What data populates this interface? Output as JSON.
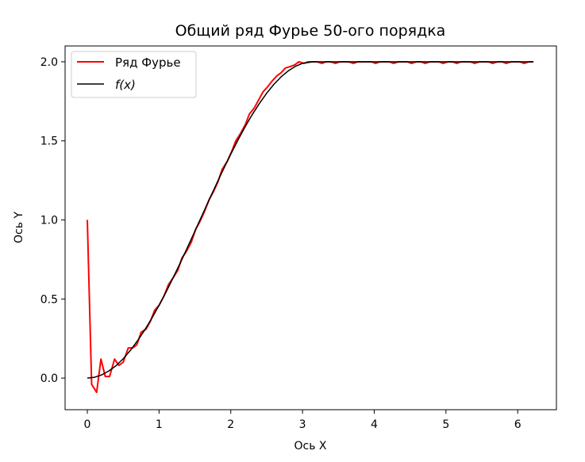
{
  "chart_data": {
    "type": "line",
    "title": "Общий ряд Фурье 50-ого порядка",
    "xlabel": "Ось X",
    "ylabel": "Ось Y",
    "xlim": [
      -0.31,
      6.54
    ],
    "ylim": [
      -0.2,
      2.1
    ],
    "xticks": [
      0,
      1,
      2,
      3,
      4,
      5,
      6
    ],
    "yticks": [
      0.0,
      0.5,
      1.0,
      1.5,
      2.0
    ],
    "xtick_labels": [
      "0",
      "1",
      "2",
      "3",
      "4",
      "5",
      "6"
    ],
    "ytick_labels": [
      "0.0",
      "0.5",
      "1.0",
      "1.5",
      "2.0"
    ],
    "grid": false,
    "legend_position": "top-left",
    "series": [
      {
        "name": "Ряд Фурье",
        "color": "#ff0000",
        "x": [
          0.0,
          0.06,
          0.13,
          0.19,
          0.25,
          0.31,
          0.38,
          0.44,
          0.5,
          0.57,
          0.63,
          0.69,
          0.75,
          0.82,
          0.88,
          0.94,
          1.0,
          1.07,
          1.13,
          1.19,
          1.26,
          1.32,
          1.38,
          1.45,
          1.51,
          1.57,
          1.63,
          1.7,
          1.76,
          1.82,
          1.88,
          1.95,
          2.01,
          2.07,
          2.14,
          2.2,
          2.26,
          2.33,
          2.39,
          2.45,
          2.51,
          2.58,
          2.64,
          2.7,
          2.76,
          2.83,
          2.89,
          2.95,
          3.02,
          3.08,
          3.14,
          3.2,
          3.27,
          3.33,
          3.39,
          3.46,
          3.52,
          3.58,
          3.64,
          3.71,
          3.77,
          3.83,
          3.9,
          3.96,
          4.02,
          4.08,
          4.15,
          4.21,
          4.27,
          4.34,
          4.4,
          4.46,
          4.52,
          4.59,
          4.65,
          4.71,
          4.78,
          4.84,
          4.9,
          4.96,
          5.03,
          5.09,
          5.15,
          5.21,
          5.28,
          5.34,
          5.4,
          5.47,
          5.53,
          5.59,
          5.65,
          5.72,
          5.78,
          5.84,
          5.91,
          5.97,
          6.03,
          6.09,
          6.16,
          6.22
        ],
        "y": [
          1.0,
          -0.04,
          -0.09,
          0.12,
          0.01,
          0.01,
          0.12,
          0.08,
          0.1,
          0.19,
          0.19,
          0.21,
          0.29,
          0.31,
          0.36,
          0.43,
          0.46,
          0.52,
          0.59,
          0.63,
          0.68,
          0.76,
          0.8,
          0.86,
          0.94,
          0.99,
          1.05,
          1.13,
          1.18,
          1.24,
          1.32,
          1.37,
          1.43,
          1.5,
          1.55,
          1.6,
          1.67,
          1.71,
          1.76,
          1.81,
          1.84,
          1.88,
          1.91,
          1.93,
          1.96,
          1.97,
          1.98,
          2.0,
          1.99,
          2.0,
          2.0,
          2.0,
          1.99,
          2.0,
          2.0,
          1.99,
          2.0,
          2.0,
          2.0,
          1.99,
          2.0,
          2.0,
          2.0,
          2.0,
          1.99,
          2.0,
          2.0,
          2.0,
          1.99,
          2.0,
          2.0,
          2.0,
          1.99,
          2.0,
          2.0,
          1.99,
          2.0,
          2.0,
          2.0,
          1.99,
          2.0,
          2.0,
          1.99,
          2.0,
          2.0,
          2.0,
          1.99,
          2.0,
          2.0,
          2.0,
          1.99,
          2.0,
          2.0,
          1.99,
          2.0,
          2.0,
          2.0,
          1.99,
          2.0,
          2.0
        ]
      },
      {
        "name": "f(x)",
        "color": "#000000",
        "x": [
          0.0,
          0.1,
          0.2,
          0.3,
          0.4,
          0.5,
          0.6,
          0.7,
          0.8,
          0.9,
          1.0,
          1.1,
          1.2,
          1.3,
          1.4,
          1.5,
          1.6,
          1.7,
          1.8,
          1.9,
          2.0,
          2.1,
          2.2,
          2.3,
          2.4,
          2.5,
          2.6,
          2.7,
          2.8,
          2.9,
          3.0,
          3.14,
          3.5,
          4.0,
          4.5,
          5.0,
          5.5,
          6.0,
          6.22
        ],
        "y": [
          0.0,
          0.005,
          0.02,
          0.045,
          0.078,
          0.122,
          0.175,
          0.236,
          0.304,
          0.379,
          0.46,
          0.546,
          0.638,
          0.732,
          0.83,
          0.929,
          1.029,
          1.129,
          1.227,
          1.323,
          1.416,
          1.505,
          1.589,
          1.667,
          1.737,
          1.801,
          1.857,
          1.904,
          1.942,
          1.971,
          1.99,
          2.0,
          2.0,
          2.0,
          2.0,
          2.0,
          2.0,
          2.0,
          2.0
        ]
      }
    ]
  }
}
